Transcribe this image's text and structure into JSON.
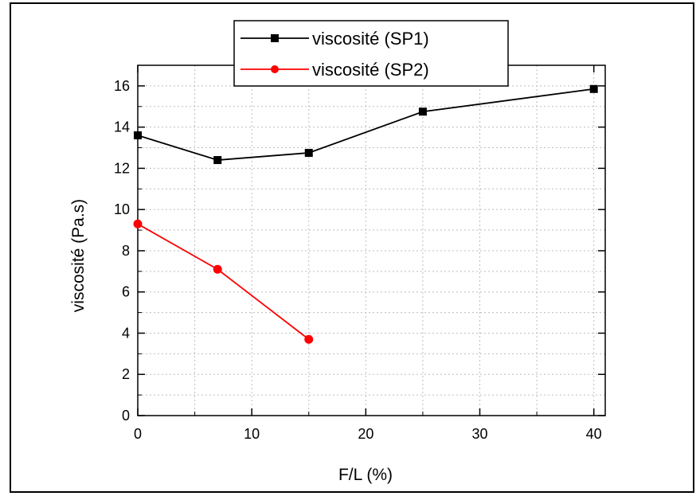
{
  "chart_data": {
    "type": "line",
    "title": "",
    "xlabel": "F/L (%)",
    "ylabel": "viscosité (Pa.s)",
    "xlim": [
      0,
      41
    ],
    "ylim": [
      0,
      17
    ],
    "x_ticks": [
      0,
      10,
      20,
      30,
      40
    ],
    "y_ticks": [
      0,
      2,
      4,
      6,
      8,
      10,
      12,
      14,
      16
    ],
    "grid": true,
    "legend_position": "top-center",
    "series": [
      {
        "name": "viscosité (SP1)",
        "color": "#000000",
        "marker": "square",
        "x": [
          0,
          7,
          15,
          25,
          40
        ],
        "y": [
          13.6,
          12.4,
          12.75,
          14.75,
          15.85
        ]
      },
      {
        "name": "viscosité (SP2)",
        "color": "#ff0000",
        "marker": "circle",
        "x": [
          0,
          7,
          15
        ],
        "y": [
          9.3,
          7.1,
          3.7
        ]
      }
    ]
  }
}
